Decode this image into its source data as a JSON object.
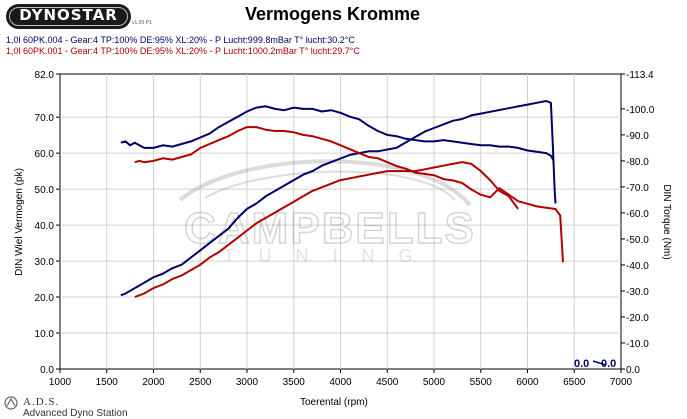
{
  "header": {
    "logo_text": "DYNOSTAR",
    "logo_version": "v1.00 P1",
    "title": "Vermogens Kromme"
  },
  "legend": [
    {
      "text": "1,0l 60PK.004 - Gear:4 TP:100% DE:95% XL:20%     - P Lucht:999.8mBar T° lucht:30.2°C",
      "color": "#00006a"
    },
    {
      "text": "1,0l 60PK.001 - Gear:4 TP:100% DE:95% XL:20%  - P Lucht:1000.2mBar T° lucht:29.7°C",
      "color": "#b00000"
    }
  ],
  "footer": {
    "brand": "A.D.S.",
    "subtitle": "Advanced Dyno Station"
  },
  "watermark": {
    "line1": "CAMPBELLS",
    "line2": "TUNING"
  },
  "readout": {
    "left": "0.0",
    "right": "0.0"
  },
  "colors": {
    "blue": "#00006a",
    "red": "#b00000",
    "blue_light": "#5a5aa0",
    "red_light": "#e08080",
    "grid": "#d0d0d0",
    "plot_bg": "#ffffff"
  },
  "chart_data": {
    "type": "line",
    "xlabel": "Toerental (rpm)",
    "ylabel_left": "DIN Wiel Vermogen (pk)",
    "ylabel_right": "DIN Torque (Nm)",
    "xlim": [
      1000,
      7000
    ],
    "ylim_left": [
      0.0,
      82.0
    ],
    "ylim_right": [
      0.0,
      113.4
    ],
    "x_ticks": [
      1000,
      1500,
      2000,
      2500,
      3000,
      3500,
      4000,
      4500,
      5000,
      5500,
      6000,
      6500,
      7000
    ],
    "y_ticks_left": [
      "0.0",
      "10.0",
      "20.0",
      "30.0",
      "40.0",
      "50.0",
      "60.0",
      "70.0",
      "82.0"
    ],
    "y_ticks_right": [
      "0.0",
      "-10.0",
      "-20.0",
      "-30.0",
      "-40.0",
      "-50.0",
      "-60.0",
      "-70.0",
      "-80.0",
      "-90.0",
      "-100.0",
      "-113.4"
    ],
    "grid": true,
    "series": [
      {
        "axis": "right",
        "color": "#00006a",
        "x": [
          1650,
          1700,
          1750,
          1800,
          1900,
          2000,
          2100,
          2200,
          2300,
          2400,
          2500,
          2600,
          2700,
          2800,
          2900,
          3000,
          3100,
          3200,
          3300,
          3400,
          3500,
          3600,
          3700,
          3800,
          3900,
          4000,
          4100,
          4200,
          4300,
          4400,
          4500,
          4600,
          4700,
          4800,
          4900,
          5000,
          5100,
          5200,
          5300,
          5400,
          5500,
          5600,
          5700,
          5800,
          5900,
          6000,
          6100,
          6200,
          6250,
          6280
        ],
        "y": [
          87,
          87.5,
          86,
          87,
          85,
          85,
          86,
          85.5,
          86.5,
          87.5,
          89,
          90.5,
          93,
          95,
          97,
          99,
          100.5,
          101,
          100,
          99.5,
          100.5,
          100,
          100,
          99,
          99.5,
          98.5,
          97,
          96,
          93.5,
          91.5,
          90,
          89.5,
          88.5,
          88,
          87.5,
          87.5,
          88,
          87.5,
          87,
          86.5,
          86,
          86,
          85.5,
          85.5,
          85,
          84,
          83.5,
          83,
          82,
          80
        ]
      },
      {
        "axis": "left",
        "color": "#00006a",
        "x": [
          1650,
          1700,
          1800,
          1900,
          2000,
          2100,
          2200,
          2300,
          2400,
          2500,
          2600,
          2700,
          2800,
          2900,
          3000,
          3100,
          3200,
          3300,
          3400,
          3500,
          3600,
          3700,
          3800,
          3900,
          4000,
          4100,
          4200,
          4300,
          4400,
          4500,
          4600,
          4700,
          4800,
          4900,
          5000,
          5100,
          5200,
          5300,
          5400,
          5500,
          5600,
          5700,
          5800,
          5900,
          6000,
          6100,
          6200,
          6250,
          6270,
          6290,
          6300
        ],
        "y": [
          20.5,
          21,
          22.5,
          24,
          25.5,
          26.5,
          28,
          29,
          31,
          33,
          35,
          37,
          39,
          42,
          44.5,
          46,
          48,
          49.5,
          51,
          52.5,
          54,
          55,
          56.5,
          57.5,
          58.5,
          59.5,
          60,
          60.5,
          60.5,
          61,
          61.5,
          63,
          64.5,
          66,
          67,
          68,
          69,
          69.5,
          70.5,
          71,
          71.5,
          72,
          72.5,
          73,
          73.5,
          74,
          74.5,
          74,
          63,
          50,
          46
        ]
      },
      {
        "axis": "right",
        "color": "#b00000",
        "x": [
          1800,
          1850,
          1900,
          2000,
          2100,
          2200,
          2300,
          2400,
          2500,
          2600,
          2700,
          2800,
          2900,
          3000,
          3100,
          3200,
          3300,
          3400,
          3500,
          3600,
          3700,
          3800,
          3900,
          4000,
          4100,
          4200,
          4300,
          4400,
          4500,
          4600,
          4700,
          4800,
          4900,
          5000,
          5100,
          5200,
          5300,
          5400,
          5500,
          5600,
          5700,
          5800,
          5900,
          6000,
          6100,
          6200,
          6300,
          6350,
          6380
        ],
        "y": [
          79.5,
          80,
          79.5,
          80,
          81,
          80.5,
          81.5,
          82.5,
          85,
          86.5,
          88,
          89.5,
          91.5,
          93,
          93,
          92,
          91.5,
          91.5,
          91,
          90,
          89.5,
          88.5,
          87.5,
          86,
          84.5,
          83,
          81.5,
          81,
          79.5,
          78,
          77,
          75.5,
          75,
          74.5,
          73,
          72.5,
          71.5,
          69,
          67,
          66,
          69.5,
          67,
          64.5,
          63.5,
          62.5,
          62,
          61.5,
          59,
          41
        ]
      },
      {
        "axis": "left",
        "color": "#b00000",
        "x": [
          1800,
          1900,
          2000,
          2100,
          2200,
          2300,
          2400,
          2500,
          2600,
          2700,
          2800,
          2900,
          3000,
          3100,
          3200,
          3300,
          3400,
          3500,
          3600,
          3700,
          3800,
          3900,
          4000,
          4100,
          4200,
          4300,
          4400,
          4500,
          4600,
          4700,
          4800,
          4900,
          5000,
          5100,
          5200,
          5300,
          5400,
          5500,
          5600,
          5700,
          5800,
          5900
        ],
        "y": [
          20,
          21,
          22.5,
          23.5,
          25,
          26,
          27.5,
          29,
          31,
          32.5,
          34.5,
          36.5,
          38.5,
          40.5,
          42,
          43.5,
          45,
          46.5,
          48,
          49.5,
          50.5,
          51.5,
          52.5,
          53,
          53.5,
          54,
          54.5,
          55,
          55,
          55,
          55,
          55.5,
          56,
          56.5,
          57,
          57.5,
          57,
          55,
          52.5,
          49.5,
          48,
          44.5
        ]
      }
    ]
  }
}
